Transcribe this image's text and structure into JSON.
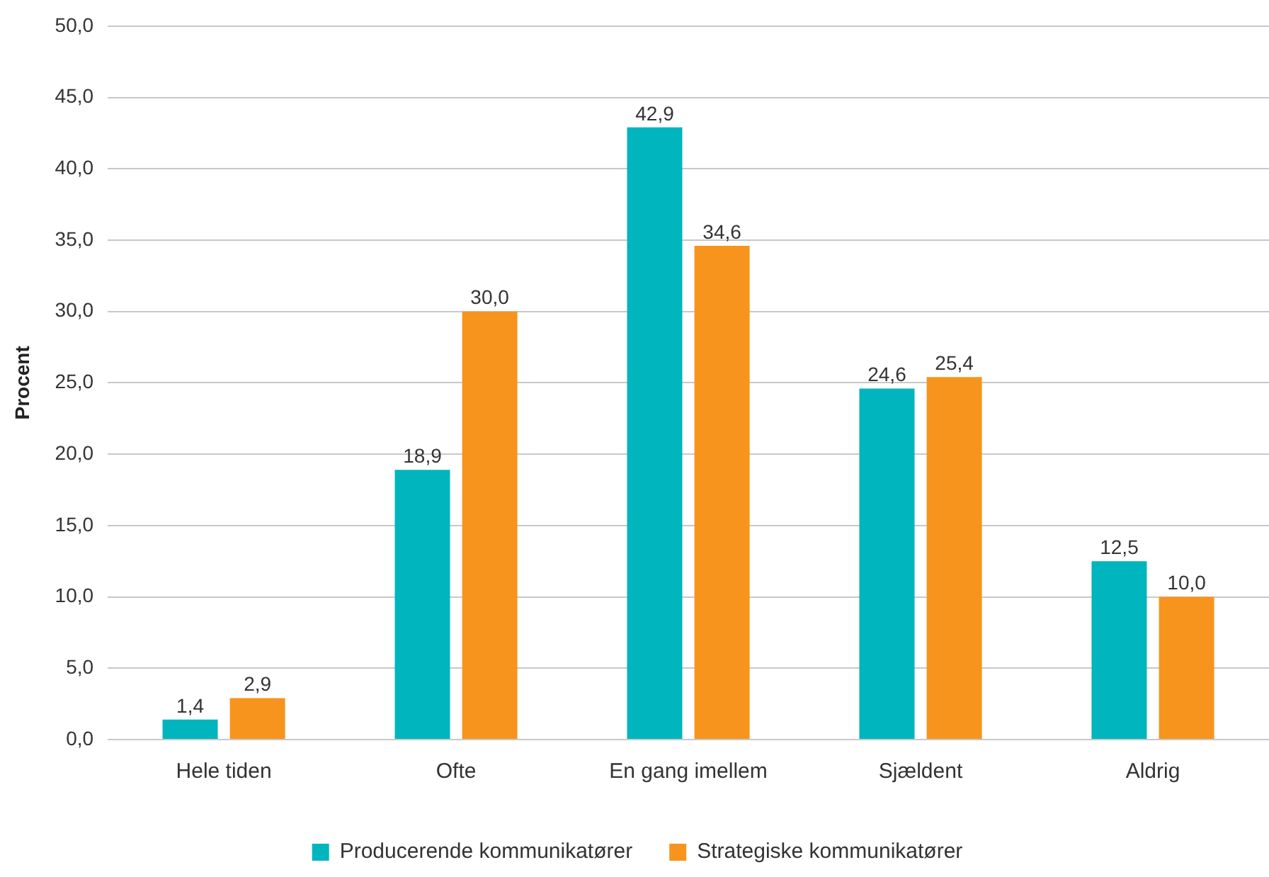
{
  "chart_data": {
    "type": "bar",
    "ylabel": "Procent",
    "categories": [
      "Hele tiden",
      "Ofte",
      "En gang imellem",
      "Sjældent",
      "Aldrig"
    ],
    "series": [
      {
        "name": "Producerende kommunikatører",
        "color": "#00b5bd",
        "values": [
          1.4,
          18.9,
          42.9,
          24.6,
          12.5
        ],
        "value_labels": [
          "1,4",
          "18,9",
          "42,9",
          "24,6",
          "12,5"
        ]
      },
      {
        "name": "Strategiske kommunikatører",
        "color": "#f7941d",
        "values": [
          2.9,
          30.0,
          34.6,
          25.4,
          10.0
        ],
        "value_labels": [
          "2,9",
          "30,0",
          "34,6",
          "25,4",
          "10,0"
        ]
      }
    ],
    "ylim": [
      0,
      50
    ],
    "yticks": [
      {
        "value": 0,
        "label": "0,0"
      },
      {
        "value": 5,
        "label": "5,0"
      },
      {
        "value": 10,
        "label": "10,0"
      },
      {
        "value": 15,
        "label": "15,0"
      },
      {
        "value": 20,
        "label": "20,0"
      },
      {
        "value": 25,
        "label": "25,0"
      },
      {
        "value": 30,
        "label": "30,0"
      },
      {
        "value": 35,
        "label": "35,0"
      },
      {
        "value": 40,
        "label": "40,0"
      },
      {
        "value": 45,
        "label": "45,0"
      },
      {
        "value": 50,
        "label": "50,0"
      }
    ],
    "grid": "y",
    "legend": "bottom"
  }
}
